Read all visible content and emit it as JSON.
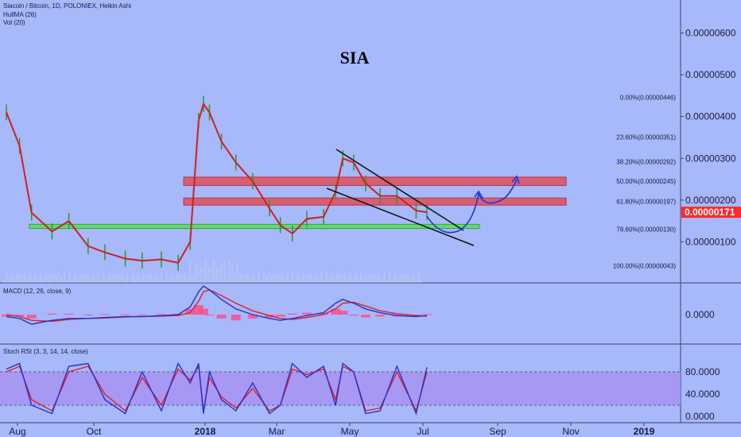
{
  "header": {
    "symbol_line": "Siacoin / Bitcoin, 1D, POLONIEX, Heikin Ashi",
    "indicator_1": "HullMA (26)",
    "indicator_2": "Vol (20)"
  },
  "main_panel": {
    "title": "SIA",
    "price_axis_labels": [
      "0.00000600",
      "0.00000500",
      "0.00000400",
      "0.00000300",
      "0.00000200",
      "0.00000100"
    ],
    "current_price": "0.00000171",
    "fib_levels": [
      {
        "label": "0.00%(0.00000446)",
        "value": 4.46e-06
      },
      {
        "label": "23.60%(0.00000351)",
        "value": 3.51e-06
      },
      {
        "label": "38.20%(0.00000292)",
        "value": 2.92e-06
      },
      {
        "label": "50.00%(0.00000245)",
        "value": 2.45e-06
      },
      {
        "label": "61.80%(0.00000197)",
        "value": 1.97e-06
      },
      {
        "label": "78.60%(0.00000130)",
        "value": 1.3e-06
      },
      {
        "label": "100.00%(0.00000043)",
        "value": 4.3e-07
      }
    ]
  },
  "macd_panel": {
    "label": "MACD (12, 26, close, 9)",
    "axis_labels": [
      "0.0000"
    ]
  },
  "stoch_panel": {
    "label": "Stoch RSI (3, 3, 14, 14, close)",
    "axis_labels": [
      "80.0000",
      "40.0000",
      "0.0000"
    ]
  },
  "time_axis": {
    "labels": [
      "Aug",
      "Oct",
      "2018",
      "Mar",
      "May",
      "Jul",
      "Sep",
      "Nov",
      "2019"
    ]
  },
  "colors": {
    "background": "#a7b8fb",
    "price_line": "#cc2222",
    "hull_line": "#cc2222",
    "support_zone": "#55e055",
    "resistance_zone": "#e0505a",
    "projection": "#1c36d8",
    "macd_line": "#2233cc",
    "signal_line": "#e02020",
    "stoch_k": "#2233cc",
    "stoch_d": "#e02020",
    "current_price_bg": "#ff2a2a"
  },
  "chart_data": {
    "type": "line",
    "title": "SIA",
    "x": [
      "2017-07-25",
      "2017-08-05",
      "2017-08-15",
      "2017-09-01",
      "2017-09-15",
      "2017-10-01",
      "2017-10-15",
      "2017-11-01",
      "2017-11-15",
      "2017-12-01",
      "2017-12-15",
      "2017-12-25",
      "2018-01-01",
      "2018-01-05",
      "2018-01-10",
      "2018-01-20",
      "2018-02-01",
      "2018-02-15",
      "2018-03-01",
      "2018-03-10",
      "2018-03-20",
      "2018-04-01",
      "2018-04-15",
      "2018-04-25",
      "2018-05-01",
      "2018-05-10",
      "2018-05-20",
      "2018-06-01",
      "2018-06-15",
      "2018-07-01",
      "2018-07-10"
    ],
    "series": [
      {
        "values": [
          4.1e-06,
          3.3e-06,
          1.7e-06,
          1.25e-06,
          1.5e-06,
          9e-07,
          7.5e-07,
          6e-07,
          5.5e-07,
          5.8e-07,
          5e-07,
          1e-06,
          3.9e-06,
          4.3e-06,
          4.1e-06,
          3.4e-06,
          2.9e-06,
          2.45e-06,
          1.8e-06,
          1.4e-06,
          1.2e-06,
          1.55e-06,
          1.6e-06,
          2.2e-06,
          3e-06,
          2.9e-06,
          2.4e-06,
          2.1e-06,
          2.1e-06,
          1.75e-06,
          1.71e-06
        ]
      }
    ],
    "ylim": [
      0.0,
      6.6e-06
    ],
    "annotations": {
      "resistance_zones": [
        [
          2.35e-06,
          2.55e-06
        ],
        [
          1.88e-06,
          2.05e-06
        ]
      ],
      "support_zone": [
        1.32e-06,
        1.42e-06
      ],
      "falling_wedge": true,
      "projection": "bounce then rise above 0.00000250"
    }
  },
  "macd_data": {
    "macd": [
      -0.1,
      -0.2,
      -0.5,
      -0.3,
      -0.2,
      -0.2,
      -0.15,
      -0.1,
      -0.1,
      -0.05,
      0.0,
      0.4,
      1.2,
      1.5,
      1.3,
      0.8,
      0.3,
      0.0,
      -0.2,
      -0.3,
      -0.2,
      -0.05,
      0.1,
      0.6,
      0.8,
      0.6,
      0.3,
      0.1,
      -0.05,
      -0.1,
      -0.05
    ],
    "signal": [
      0.0,
      -0.1,
      -0.3,
      -0.35,
      -0.25,
      -0.2,
      -0.18,
      -0.12,
      -0.1,
      -0.08,
      -0.04,
      0.1,
      0.7,
      1.2,
      1.3,
      1.0,
      0.6,
      0.2,
      -0.05,
      -0.2,
      -0.25,
      -0.15,
      0.0,
      0.3,
      0.6,
      0.65,
      0.45,
      0.2,
      0.05,
      -0.05,
      -0.08
    ]
  },
  "stoch_data": {
    "k": [
      85,
      95,
      20,
      5,
      90,
      95,
      30,
      5,
      80,
      10,
      95,
      60,
      95,
      5,
      80,
      30,
      10,
      60,
      5,
      20,
      95,
      70,
      90,
      20,
      95,
      80,
      5,
      10,
      90,
      5,
      88
    ],
    "d": [
      80,
      90,
      30,
      10,
      80,
      90,
      40,
      10,
      70,
      20,
      85,
      65,
      90,
      10,
      70,
      35,
      15,
      50,
      10,
      20,
      85,
      75,
      85,
      30,
      90,
      80,
      10,
      15,
      80,
      10,
      80
    ]
  }
}
